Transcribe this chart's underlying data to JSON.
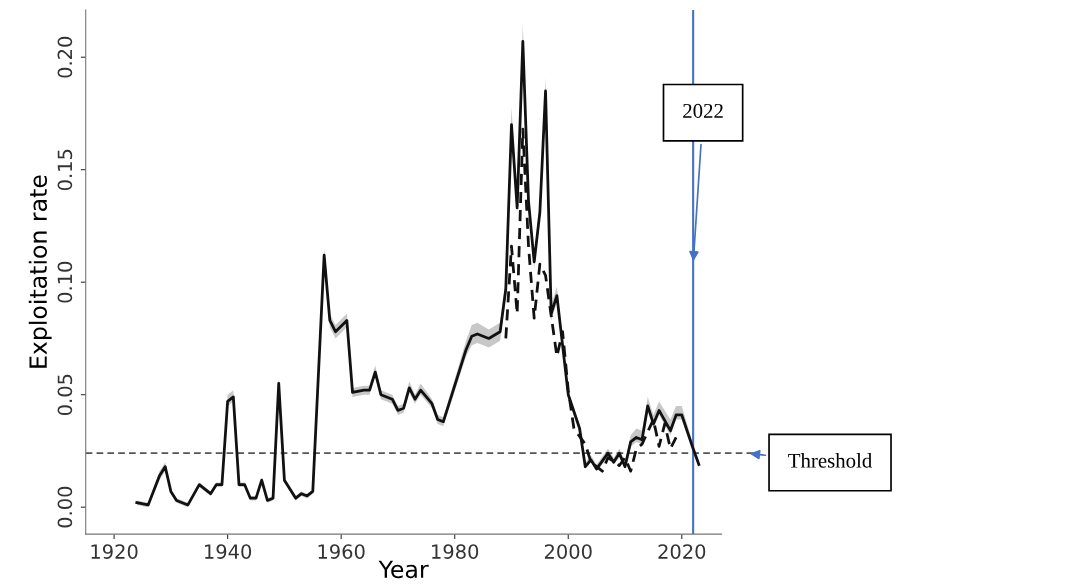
{
  "chart_data": {
    "type": "line",
    "xlabel": "Year",
    "ylabel": "Exploitation rate",
    "xlim": [
      1915,
      2027
    ],
    "xticks": [
      1920,
      1940,
      1960,
      1980,
      2000,
      2020
    ],
    "ylim": [
      -0.012,
      0.221
    ],
    "yticks": [
      {
        "value": 0,
        "label": "0.00"
      },
      {
        "value": 0.05,
        "label": "0.05"
      },
      {
        "value": 0.1,
        "label": "0.10"
      },
      {
        "value": 0.15,
        "label": "0.15"
      },
      {
        "value": 0.2,
        "label": "0.20"
      }
    ],
    "grid": false,
    "legend": false,
    "series": [
      {
        "color": "#111111",
        "line_style": "solid",
        "x": [
          1924,
          1926,
          1928,
          1929,
          1930,
          1931,
          1933,
          1935,
          1937,
          1938,
          1939,
          1940,
          1941,
          1942,
          1943,
          1944,
          1945,
          1946,
          1947,
          1948,
          1949,
          1950,
          1952,
          1953,
          1954,
          1955,
          1957,
          1958,
          1959,
          1961,
          1962,
          1964,
          1965,
          1966,
          1967,
          1969,
          1970,
          1971,
          1972,
          1973,
          1974,
          1976,
          1977,
          1978,
          1982,
          1983,
          1984,
          1986,
          1988,
          1989,
          1990,
          1991,
          1992,
          1993,
          1994,
          1995,
          1996,
          1997,
          1998,
          2000,
          2002,
          2003,
          2004,
          2005,
          2007,
          2008,
          2009,
          2010,
          2011,
          2012,
          2013,
          2014,
          2015,
          2016,
          2018,
          2019,
          2020,
          2022,
          2023
        ],
        "values": [
          0.002,
          0.001,
          0.014,
          0.018,
          0.007,
          0.003,
          0.001,
          0.01,
          0.006,
          0.01,
          0.01,
          0.047,
          0.049,
          0.01,
          0.01,
          0.004,
          0.004,
          0.012,
          0.003,
          0.004,
          0.055,
          0.012,
          0.004,
          0.006,
          0.005,
          0.007,
          0.112,
          0.083,
          0.078,
          0.083,
          0.051,
          0.052,
          0.052,
          0.06,
          0.05,
          0.048,
          0.043,
          0.044,
          0.053,
          0.048,
          0.052,
          0.046,
          0.039,
          0.038,
          0.07,
          0.076,
          0.077,
          0.075,
          0.078,
          0.097,
          0.17,
          0.133,
          0.207,
          0.136,
          0.109,
          0.131,
          0.185,
          0.086,
          0.094,
          0.05,
          0.035,
          0.018,
          0.021,
          0.017,
          0.024,
          0.02,
          0.024,
          0.018,
          0.029,
          0.031,
          0.03,
          0.045,
          0.037,
          0.043,
          0.034,
          0.041,
          0.041,
          0.026,
          0.019
        ],
        "lower": [
          0.001,
          0.0,
          0.012,
          0.016,
          0.006,
          0.002,
          0.0,
          0.009,
          0.005,
          0.009,
          0.009,
          0.045,
          0.047,
          0.009,
          0.009,
          0.003,
          0.003,
          0.011,
          0.002,
          0.003,
          0.053,
          0.011,
          0.003,
          0.005,
          0.004,
          0.006,
          0.11,
          0.08,
          0.075,
          0.08,
          0.049,
          0.05,
          0.05,
          0.058,
          0.048,
          0.046,
          0.041,
          0.042,
          0.051,
          0.046,
          0.05,
          0.044,
          0.037,
          0.036,
          0.067,
          0.072,
          0.073,
          0.071,
          0.074,
          0.094,
          0.167,
          0.13,
          0.204,
          0.133,
          0.106,
          0.128,
          0.182,
          0.083,
          0.091,
          0.048,
          0.033,
          0.017,
          0.02,
          0.016,
          0.022,
          0.019,
          0.022,
          0.017,
          0.027,
          0.029,
          0.028,
          0.043,
          0.035,
          0.041,
          0.032,
          0.039,
          0.039,
          0.024,
          0.018
        ],
        "upper": [
          0.003,
          0.002,
          0.016,
          0.02,
          0.008,
          0.004,
          0.002,
          0.011,
          0.007,
          0.011,
          0.011,
          0.05,
          0.052,
          0.011,
          0.011,
          0.005,
          0.005,
          0.013,
          0.004,
          0.005,
          0.057,
          0.013,
          0.005,
          0.007,
          0.006,
          0.008,
          0.115,
          0.086,
          0.081,
          0.086,
          0.053,
          0.054,
          0.054,
          0.063,
          0.052,
          0.05,
          0.045,
          0.046,
          0.056,
          0.05,
          0.055,
          0.048,
          0.041,
          0.04,
          0.074,
          0.081,
          0.082,
          0.079,
          0.082,
          0.101,
          0.178,
          0.137,
          0.215,
          0.14,
          0.113,
          0.135,
          0.191,
          0.09,
          0.098,
          0.052,
          0.037,
          0.02,
          0.023,
          0.019,
          0.026,
          0.022,
          0.026,
          0.02,
          0.032,
          0.035,
          0.034,
          0.049,
          0.041,
          0.047,
          0.039,
          0.045,
          0.045,
          0.028,
          0.021
        ]
      },
      {
        "color": "#111111",
        "line_style": "dashed",
        "x": [
          1989,
          1990,
          1991,
          1992,
          1993,
          1994,
          1995,
          1996,
          1998,
          1999,
          2000,
          2001,
          2003,
          2004,
          2006,
          2007,
          2009,
          2010,
          2011,
          2012,
          2013,
          2015,
          2016,
          2017,
          2018,
          2019
        ],
        "values": [
          0.075,
          0.116,
          0.086,
          0.168,
          0.116,
          0.084,
          0.108,
          0.103,
          0.067,
          0.078,
          0.052,
          0.035,
          0.028,
          0.02,
          0.016,
          0.022,
          0.0185,
          0.022,
          0.016,
          0.026,
          0.028,
          0.039,
          0.027,
          0.037,
          0.026,
          0.031
        ]
      }
    ],
    "ref_lines": [
      {
        "axis": "y",
        "value": 0.024,
        "label": "Threshold",
        "color": "#555555",
        "line_style": "dashed"
      },
      {
        "axis": "x",
        "value": 2022,
        "label": "2022",
        "color": "#4472c4",
        "line_style": "solid"
      }
    ]
  }
}
